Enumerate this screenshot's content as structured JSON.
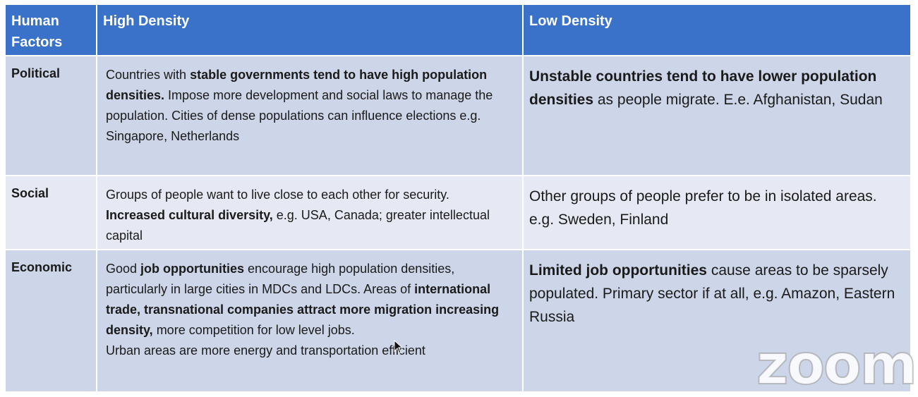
{
  "header": {
    "col1": "Human Factors",
    "col2": "High Density",
    "col3": "Low Density"
  },
  "rows": [
    {
      "factor": "Political",
      "high": {
        "p1_plain_a": "Countries with ",
        "p1_bold": "stable governments tend to have high population densities.",
        "p1_plain_b": "  Impose more development and social laws to manage the population.  Cities of dense populations can influence elections e.g. Singapore, Netherlands"
      },
      "low": {
        "bold": "Unstable countries tend to have lower population densities",
        "plain": " as people migrate. E.e. Afghanistan, Sudan"
      }
    },
    {
      "factor": "Social",
      "high": {
        "plain_a": "Groups of people want to live close to each other for security.   ",
        "bold": "Increased cultural diversity,",
        "plain_b": "  e.g. USA, Canada; greater intellectual capital"
      },
      "low": {
        "plain": "Other groups of people prefer to be in isolated areas.  e.g. Sweden, Finland"
      }
    },
    {
      "factor": "Economic",
      "high": {
        "plain_a": "Good ",
        "bold_a": "job opportunities",
        "plain_b": " encourage high population densities, particularly in large cities in MDCs and LDCs. Areas of ",
        "bold_b": "international trade, transnational companies attract more migration increasing density,",
        "plain_c": " more competition for low level jobs.",
        "line2": "Urban areas are more energy and transportation efficient"
      },
      "low": {
        "bold": "Limited job opportunities",
        "plain": " cause areas to be sparsely populated.  Primary sector if at all, e.g. Amazon, Eastern Russia"
      }
    }
  ],
  "watermark": {
    "text": "zoom"
  },
  "colors": {
    "header_bg": "#3a72c9",
    "row_dark": "#cdd5e8",
    "row_light": "#e6e9f3"
  }
}
